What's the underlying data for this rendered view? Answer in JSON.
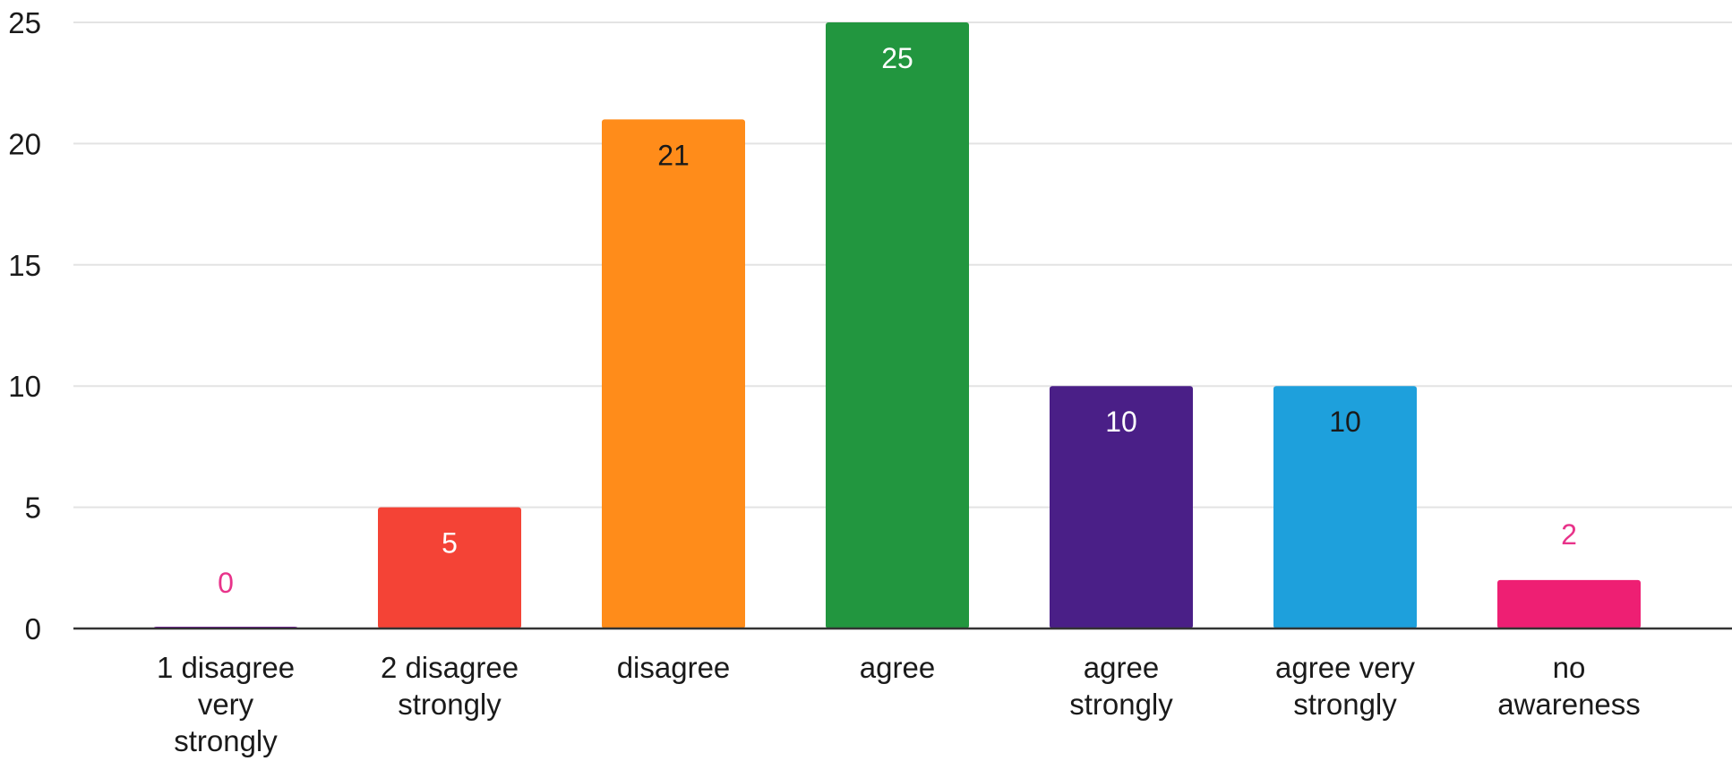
{
  "chart_data": {
    "type": "bar",
    "title": "",
    "xlabel": "",
    "ylabel": "",
    "ylim": [
      0,
      25
    ],
    "yticks": [
      0,
      5,
      10,
      15,
      20,
      25
    ],
    "grid": true,
    "legend": "none",
    "categories": [
      "1 disagree very strongly",
      "2  disagree strongly",
      "disagree",
      "agree",
      "agree strongly",
      "agree very strongly",
      "no awareness"
    ],
    "category_lines": [
      [
        "1 disagree",
        "very",
        "strongly"
      ],
      [
        "2  disagree",
        "strongly"
      ],
      [
        "disagree"
      ],
      [
        "agree"
      ],
      [
        "agree",
        "strongly"
      ],
      [
        "agree very",
        "strongly"
      ],
      [
        "no",
        "awareness"
      ]
    ],
    "values": [
      0,
      5,
      21,
      25,
      10,
      10,
      2
    ],
    "colors": [
      "#7b1fa2",
      "#f44336",
      "#ff8c1a",
      "#22963f",
      "#4a1f87",
      "#1ea0dc",
      "#ee1f73"
    ],
    "value_label_colors": [
      "#e8338a",
      "#ffffff",
      "#1a1a1a",
      "#ffffff",
      "#ffffff",
      "#1a1a1a",
      "#e8338a"
    ],
    "value_label_position": [
      "outside",
      "inside",
      "inside",
      "inside",
      "inside",
      "inside",
      "outside"
    ]
  }
}
